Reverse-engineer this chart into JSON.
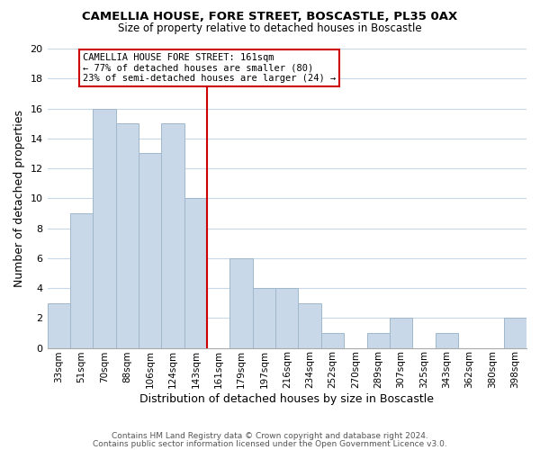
{
  "title": "CAMELLIA HOUSE, FORE STREET, BOSCASTLE, PL35 0AX",
  "subtitle": "Size of property relative to detached houses in Boscastle",
  "xlabel": "Distribution of detached houses by size in Boscastle",
  "ylabel": "Number of detached properties",
  "bar_labels": [
    "33sqm",
    "51sqm",
    "70sqm",
    "88sqm",
    "106sqm",
    "124sqm",
    "143sqm",
    "161sqm",
    "179sqm",
    "197sqm",
    "216sqm",
    "234sqm",
    "252sqm",
    "270sqm",
    "289sqm",
    "307sqm",
    "325sqm",
    "343sqm",
    "362sqm",
    "380sqm",
    "398sqm"
  ],
  "bar_values": [
    3,
    9,
    16,
    15,
    13,
    15,
    10,
    0,
    6,
    4,
    4,
    3,
    1,
    0,
    1,
    2,
    0,
    1,
    0,
    0,
    2
  ],
  "bar_color": "#c8d8e8",
  "bar_edge_color": "#a0b8cc",
  "vline_color": "#cc0000",
  "ylim": [
    0,
    20
  ],
  "yticks": [
    0,
    2,
    4,
    6,
    8,
    10,
    12,
    14,
    16,
    18,
    20
  ],
  "annotation_title": "CAMELLIA HOUSE FORE STREET: 161sqm",
  "annotation_line1": "← 77% of detached houses are smaller (80)",
  "annotation_line2": "23% of semi-detached houses are larger (24) →",
  "annotation_box_color": "#ffffff",
  "annotation_box_edge": "#cc0000",
  "footer_line1": "Contains HM Land Registry data © Crown copyright and database right 2024.",
  "footer_line2": "Contains public sector information licensed under the Open Government Licence v3.0.",
  "background_color": "#ffffff",
  "grid_color": "#c8d8e8"
}
